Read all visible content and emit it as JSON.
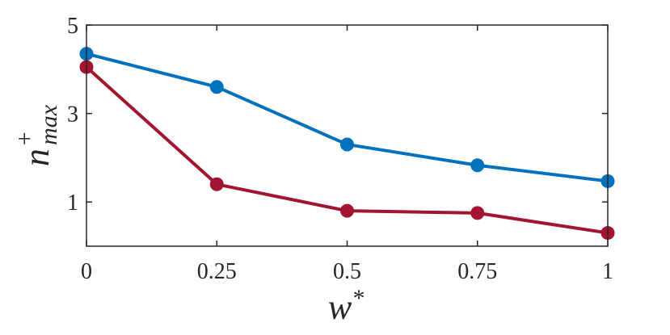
{
  "chart_data": {
    "type": "line",
    "title": "",
    "xlabel": "w",
    "xlabel_sup": "*",
    "ylabel": "n",
    "ylabel_sup": "+",
    "ylabel_sub": "max",
    "xlim": [
      0,
      1
    ],
    "ylim": [
      0,
      5
    ],
    "x_ticks": [
      0,
      0.25,
      0.5,
      0.75,
      1
    ],
    "x_tick_labels": [
      "0",
      "0.25",
      "0.5",
      "0.75",
      "1"
    ],
    "y_ticks": [
      1,
      3,
      5
    ],
    "y_tick_labels": [
      "1",
      "3",
      "5"
    ],
    "grid": false,
    "x": [
      0,
      0.25,
      0.5,
      0.75,
      1
    ],
    "series": [
      {
        "color": "#0072BD",
        "values": [
          4.35,
          3.6,
          2.3,
          1.83,
          1.47
        ]
      },
      {
        "color": "#A2142F",
        "values": [
          4.05,
          1.4,
          0.8,
          0.75,
          0.3
        ]
      }
    ]
  }
}
